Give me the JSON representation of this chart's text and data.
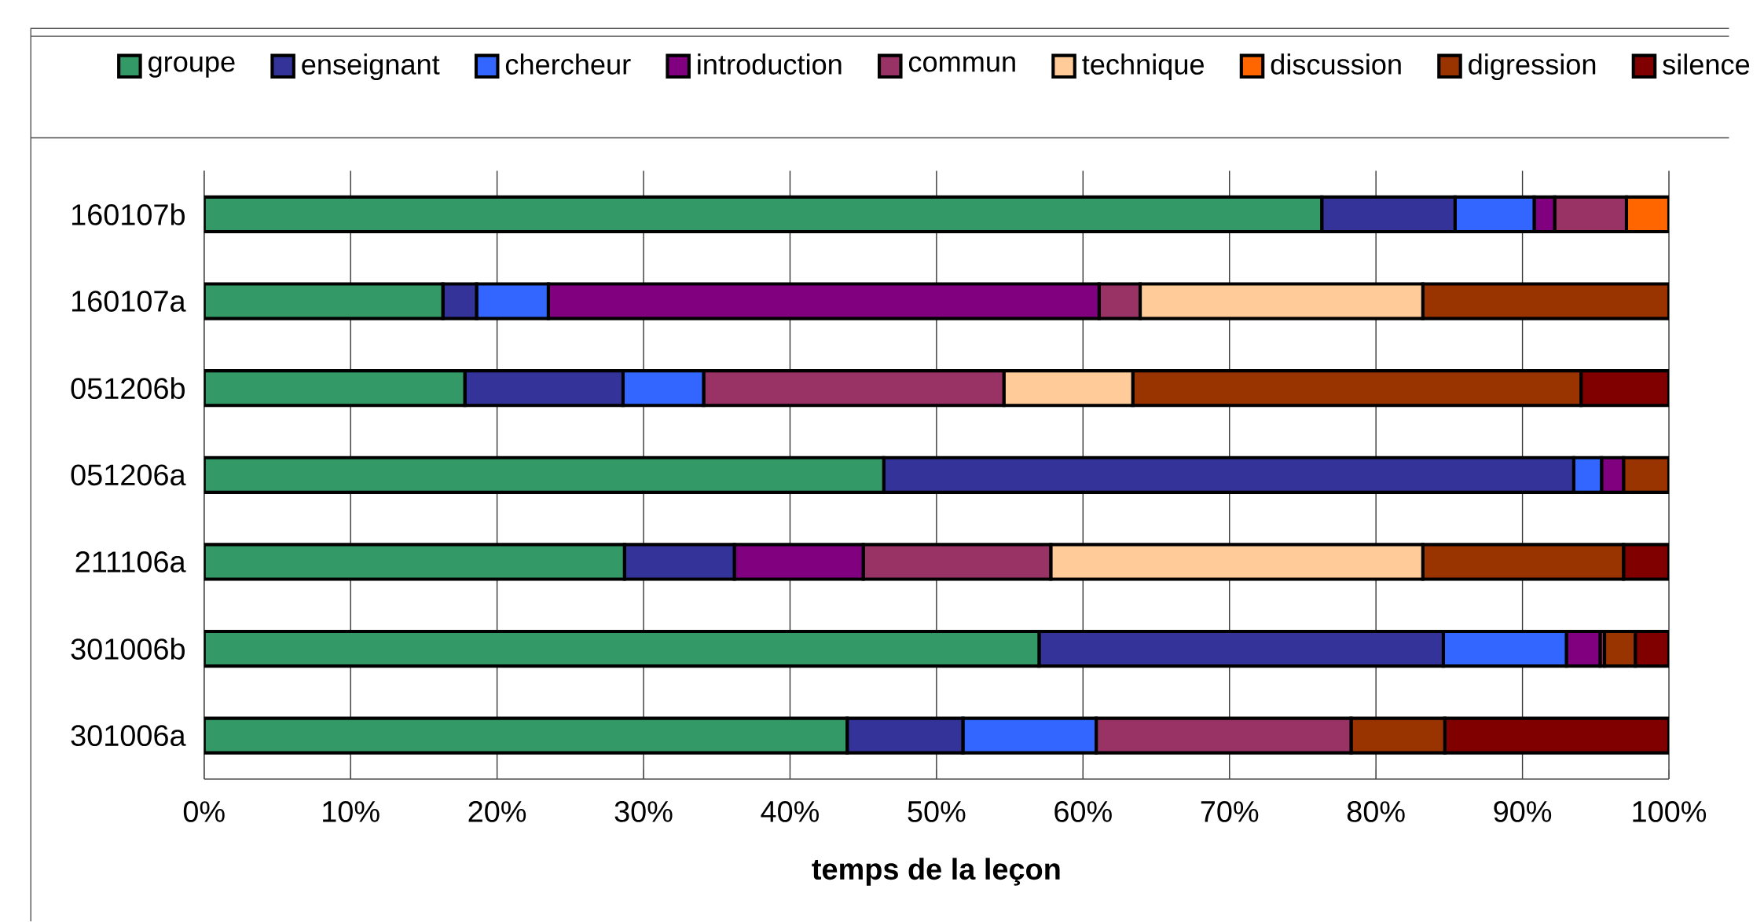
{
  "chart_data": {
    "type": "bar",
    "orientation": "horizontal",
    "stacked": true,
    "xlabel": "temps de la leçon",
    "categories": [
      "160107b",
      "160107a",
      "051206b",
      "051206a",
      "211106a",
      "301006b",
      "301006a"
    ],
    "series": [
      {
        "name": "groupe",
        "color": "#339966",
        "values": [
          76.3,
          16.3,
          17.8,
          46.4,
          28.7,
          57.0,
          43.9
        ]
      },
      {
        "name": "enseignant",
        "color": "#333399",
        "values": [
          9.1,
          2.3,
          10.8,
          47.1,
          7.5,
          27.6,
          7.9
        ]
      },
      {
        "name": "chercheur",
        "color": "#3366ff",
        "values": [
          5.4,
          4.9,
          5.5,
          1.9,
          null,
          8.4,
          9.1
        ]
      },
      {
        "name": "introduction",
        "color": "#800080",
        "values": [
          1.4,
          37.6,
          null,
          1.5,
          8.8,
          2.3,
          null
        ]
      },
      {
        "name": "commun",
        "color": "#993366",
        "values": [
          4.9,
          2.8,
          20.5,
          null,
          12.8,
          0.3,
          17.4
        ]
      },
      {
        "name": "technique",
        "color": "#ffcc99",
        "values": [
          null,
          19.3,
          8.8,
          null,
          25.4,
          null,
          null
        ]
      },
      {
        "name": "discussion",
        "color": "#ff6600",
        "values": [
          2.9,
          null,
          null,
          null,
          null,
          null,
          null
        ]
      },
      {
        "name": "digression",
        "color": "#993300",
        "values": [
          null,
          16.8,
          30.6,
          3.1,
          13.7,
          2.1,
          6.4
        ]
      },
      {
        "name": "silence",
        "color": "#800000",
        "values": [
          null,
          null,
          6.0,
          null,
          3.1,
          2.3,
          15.3
        ]
      }
    ],
    "xlim": [
      0,
      100
    ],
    "xticks": [
      {
        "value": 0,
        "label": "0%"
      },
      {
        "value": 10,
        "label": "10%"
      },
      {
        "value": 20,
        "label": "20%"
      },
      {
        "value": 30,
        "label": "30%"
      },
      {
        "value": 40,
        "label": "40%"
      },
      {
        "value": 50,
        "label": "50%"
      },
      {
        "value": 60,
        "label": "60%"
      },
      {
        "value": 70,
        "label": "70%"
      },
      {
        "value": 80,
        "label": "80%"
      },
      {
        "value": 90,
        "label": "90%"
      },
      {
        "value": 100,
        "label": "100%"
      }
    ],
    "grid": "x",
    "legend": "top"
  }
}
